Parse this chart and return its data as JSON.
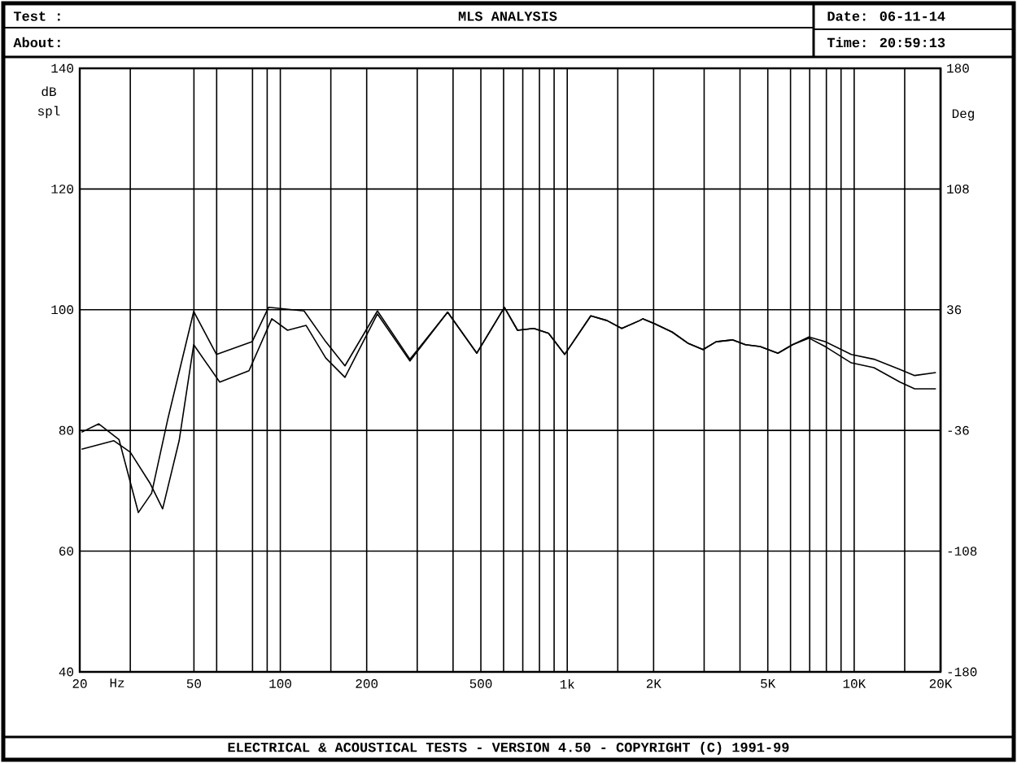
{
  "chart_data": {
    "type": "line",
    "title": "MLS ANALYSIS",
    "xlabel": "Hz",
    "ylabel": "dB spl",
    "y2label": "Deg",
    "annotations": [
      "Test :",
      "About:",
      "Date: 06-11-14",
      "Time: 20:59:13",
      "ELECTRICAL & ACOUSTICAL TESTS - VERSION 4.50 - COPYRIGHT (C) 1991-99"
    ],
    "log": "x",
    "grid": true,
    "marker": "none",
    "line_style": "solid",
    "xlim": [
      20,
      20000
    ],
    "ylim": [
      40,
      140
    ],
    "y2lim": [
      -180,
      180
    ],
    "xticks": [
      20,
      {
        "value": 30,
        "label": null
      },
      50,
      {
        "value": 60,
        "label": null
      },
      {
        "value": 80,
        "label": null
      },
      {
        "value": 90,
        "label": null
      },
      100,
      {
        "value": 150,
        "label": null
      },
      200,
      {
        "value": 300,
        "label": null
      },
      {
        "value": 400,
        "label": null
      },
      500,
      {
        "value": 600,
        "label": null
      },
      {
        "value": 700,
        "label": null
      },
      {
        "value": 800,
        "label": null
      },
      {
        "value": 900,
        "label": null
      },
      {
        "value": 1000,
        "label": "1k"
      },
      {
        "value": 1500,
        "label": null
      },
      {
        "value": 2000,
        "label": "2K"
      },
      {
        "value": 3000,
        "label": null
      },
      {
        "value": 4000,
        "label": null
      },
      {
        "value": 5000,
        "label": "5K"
      },
      {
        "value": 6000,
        "label": null
      },
      {
        "value": 7000,
        "label": null
      },
      {
        "value": 8000,
        "label": null
      },
      {
        "value": 9000,
        "label": null
      },
      {
        "value": 10000,
        "label": "10K"
      },
      {
        "value": 15000,
        "label": null
      },
      {
        "value": 20000,
        "label": "20K"
      }
    ],
    "yticks": [
      40,
      60,
      80,
      100,
      120,
      140
    ],
    "y2ticks": [
      -180,
      -108,
      -36,
      36,
      108,
      180
    ],
    "series": [
      {
        "color": "#000000",
        "x": [
          20.3,
          23.3,
          27.4,
          32.0,
          35.6,
          40.5,
          49.9,
          59.9,
          79.8,
          91,
          121,
          144,
          168,
          218,
          283,
          383,
          484,
          604,
          671,
          765,
          861,
          980,
          1208,
          1377,
          1549,
          1787,
          1836,
          2010,
          2322,
          2645,
          2974,
          3302,
          3765,
          4178,
          4700,
          5422,
          6100,
          6954,
          7926,
          9770,
          11720,
          14450,
          16250,
          19270
        ],
        "values": [
          79.7,
          81.1,
          78.5,
          66.4,
          69.6,
          81.8,
          99.7,
          92.6,
          94.7,
          100.4,
          99.8,
          94.7,
          90.7,
          99.8,
          91.8,
          99.6,
          92.8,
          100.4,
          96.6,
          96.9,
          96.1,
          92.6,
          99.0,
          98.2,
          96.9,
          98.2,
          98.5,
          97.7,
          96.3,
          94.4,
          93.4,
          94.7,
          95.0,
          94.2,
          93.9,
          92.8,
          94.2,
          95.5,
          94.7,
          92.6,
          91.8,
          90.1,
          89.1,
          89.6
        ]
      },
      {
        "color": "#000000",
        "x": [
          20.3,
          26.3,
          30,
          35.1,
          38.9,
          44.4,
          49.9,
          61.5,
          77.8,
          93.4,
          106,
          123,
          144,
          168,
          218,
          283,
          383,
          484,
          604,
          671,
          765,
          861,
          980,
          1208,
          1377,
          1549,
          1787,
          1836,
          2010,
          2322,
          2645,
          2974,
          3302,
          3765,
          4178,
          4700,
          5422,
          6100,
          6954,
          7926,
          9770,
          11720,
          14450,
          16250,
          19270
        ],
        "values": [
          76.9,
          78.3,
          76.4,
          71.3,
          67.0,
          78.3,
          94.2,
          88.0,
          89.9,
          98.5,
          96.6,
          97.4,
          92.0,
          88.8,
          99.3,
          91.5,
          99.6,
          92.8,
          100.4,
          96.6,
          96.9,
          96.1,
          92.6,
          99.0,
          98.2,
          96.9,
          98.2,
          98.5,
          97.7,
          96.3,
          94.4,
          93.4,
          94.7,
          95.0,
          94.2,
          93.9,
          92.8,
          94.2,
          95.3,
          93.9,
          91.2,
          90.4,
          88.0,
          86.9,
          86.9
        ]
      }
    ]
  }
}
